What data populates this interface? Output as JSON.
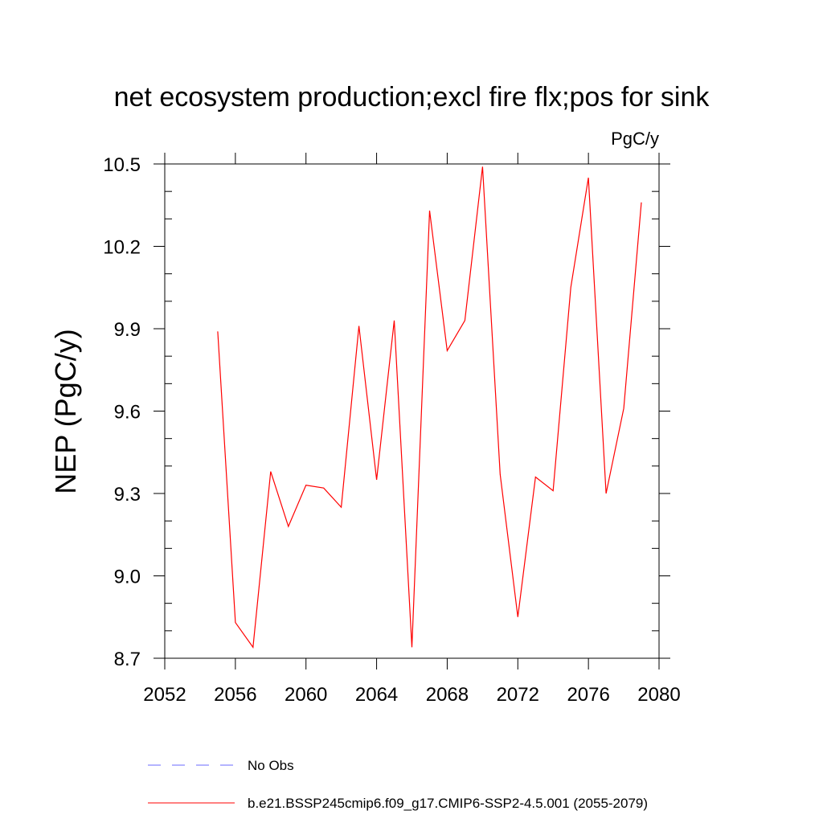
{
  "chart_data": {
    "type": "line",
    "title": "net ecosystem production;excl fire flx;pos for sink",
    "units_label": "PgC/y",
    "xlabel": "",
    "ylabel": "NEP  (PgC/y)",
    "xlim": [
      2052,
      2080
    ],
    "ylim": [
      8.7,
      10.5
    ],
    "x_ticks": [
      "2052",
      "2056",
      "2060",
      "2064",
      "2068",
      "2072",
      "2076",
      "2080"
    ],
    "y_ticks": [
      "8.7",
      "9.0",
      "9.3",
      "9.6",
      "9.9",
      "10.2",
      "10.5"
    ],
    "x_tick_values": [
      2052,
      2056,
      2060,
      2064,
      2068,
      2072,
      2076,
      2080
    ],
    "y_tick_values": [
      8.7,
      9.0,
      9.3,
      9.6,
      9.9,
      10.2,
      10.5
    ],
    "grid": false,
    "legend_position": "bottom",
    "series": [
      {
        "name": "b.e21.BSSP245cmip6.f09_g17.CMIP6-SSP2-4.5.001 (2055-2079)",
        "color": "#ff0000",
        "style": "solid",
        "x": [
          2055,
          2056,
          2057,
          2058,
          2059,
          2060,
          2061,
          2062,
          2063,
          2064,
          2065,
          2066,
          2067,
          2068,
          2069,
          2070,
          2071,
          2072,
          2073,
          2074,
          2075,
          2076,
          2077,
          2078,
          2079
        ],
        "values": [
          9.89,
          8.83,
          8.74,
          9.38,
          9.18,
          9.33,
          9.32,
          9.25,
          9.91,
          9.35,
          9.93,
          8.74,
          10.33,
          9.82,
          9.93,
          10.49,
          9.37,
          8.85,
          9.36,
          9.31,
          10.05,
          10.45,
          9.3,
          9.61,
          10.36
        ]
      }
    ],
    "legend": [
      {
        "label": "No Obs",
        "color": "#6a6aff",
        "style": "dashed"
      },
      {
        "label": "b.e21.BSSP245cmip6.f09_g17.CMIP6-SSP2-4.5.001 (2055-2079)",
        "color": "#ff0000",
        "style": "solid"
      }
    ]
  }
}
